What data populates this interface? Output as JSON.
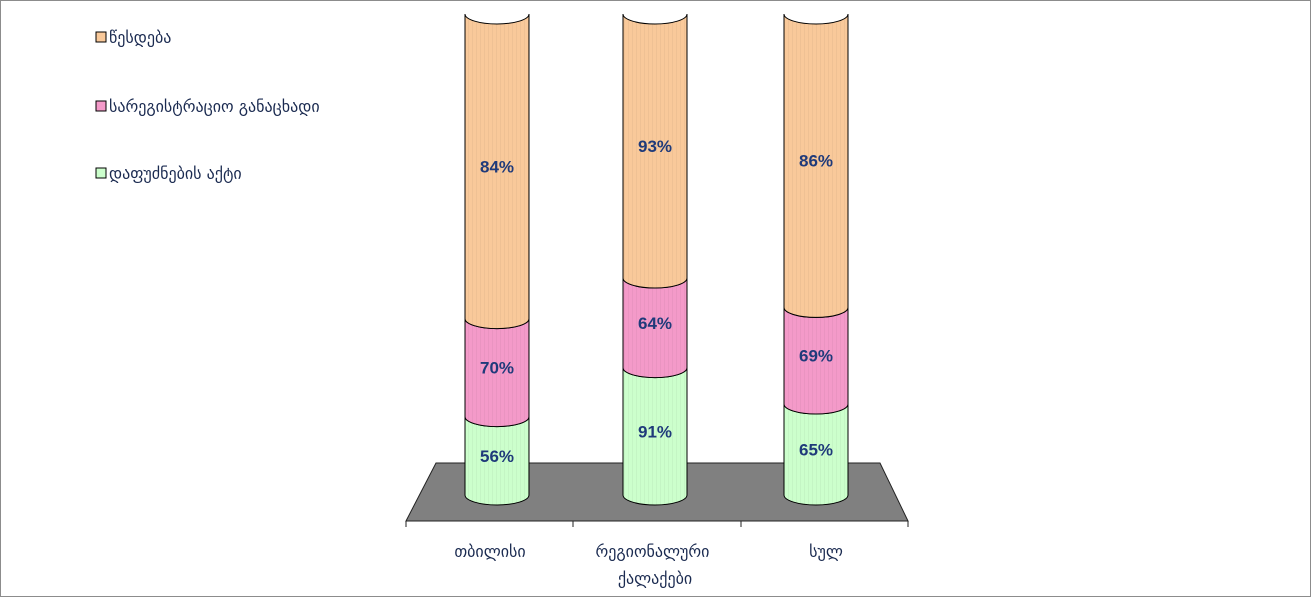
{
  "chart_data": {
    "type": "bar",
    "stacked": true,
    "three_d": true,
    "categories": [
      "თბილისი",
      "რეგიონალური ქალაქები",
      "სულ"
    ],
    "series": [
      {
        "name": "დაფუძნების აქტი",
        "values": [
          56,
          91,
          65
        ],
        "color": "#ccffcc"
      },
      {
        "name": "სარეგისტრაციო განაცხადი",
        "values": [
          70,
          64,
          69
        ],
        "color": "#f49ac9"
      },
      {
        "name": "წესდება",
        "values": [
          84,
          93,
          86
        ],
        "color": "#f9c99a"
      }
    ],
    "data_labels": [
      [
        "56%",
        "91%",
        "65%"
      ],
      [
        "70%",
        "64%",
        "69%"
      ],
      [
        "84%",
        "93%",
        "86%"
      ]
    ],
    "legend_position": "top-left",
    "floor_color": "#808080",
    "grid": false
  }
}
